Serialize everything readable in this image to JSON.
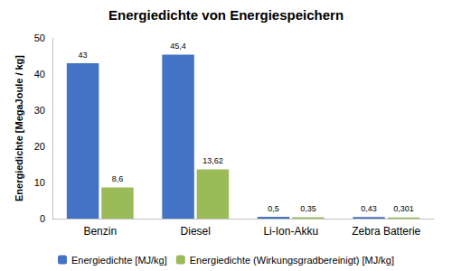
{
  "chart_data": {
    "type": "bar",
    "title": "Energiedichte von Energiespeichern",
    "y_label": "Energiedichte [MegaJoule / kg]",
    "categories": [
      "Benzin",
      "Diesel",
      "Li-Ion-Akku",
      "Zebra Batterie"
    ],
    "series": [
      {
        "name": "Energiedichte [MJ/kg]",
        "color": "#4472c4",
        "values": [
          43,
          45.4,
          0.5,
          0.43
        ],
        "value_labels": [
          "43",
          "45,4",
          "0,5",
          "0,43"
        ]
      },
      {
        "name": "Energiedichte (Wirkungsgradbereinigt) [MJ/kg]",
        "color": "#9bbb59",
        "values": [
          8.6,
          13.62,
          0.35,
          0.301
        ],
        "value_labels": [
          "8,6",
          "13,62",
          "0,35",
          "0,301"
        ]
      }
    ],
    "ylim": [
      0,
      50
    ],
    "yticks": [
      0,
      10,
      20,
      30,
      40,
      50
    ],
    "grid": false,
    "legend": "bottom",
    "data_labels": true
  }
}
